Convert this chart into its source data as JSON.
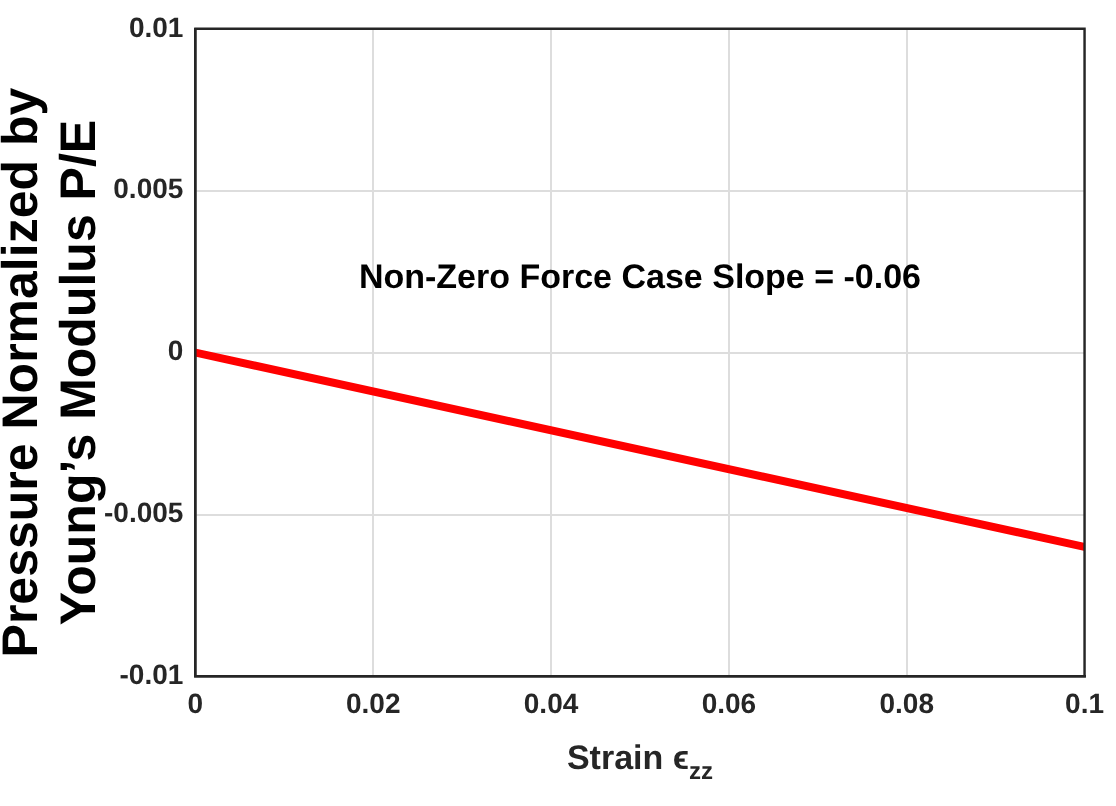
{
  "chart_data": {
    "type": "line",
    "xlabel": "Strain ϵ$_{zz}$",
    "ylabel": "Pressure Normalized by\nYoung’s Modulus P/E",
    "x": [
      0,
      0.1
    ],
    "series": [
      {
        "color": "#ff0000",
        "values": [
          0,
          -0.006
        ]
      }
    ],
    "xlim": [
      0,
      0.1
    ],
    "xticks": [
      0,
      0.02,
      0.04,
      0.06,
      0.08,
      0.1
    ],
    "ylim": [
      -0.01,
      0.01
    ],
    "yticks": [
      -0.01,
      -0.005,
      0,
      0.005,
      0.01
    ],
    "annotations": [
      "Non-Zero Force Case Slope = -0.06"
    ],
    "grid": true,
    "marker": "none",
    "line_style": "solid"
  }
}
